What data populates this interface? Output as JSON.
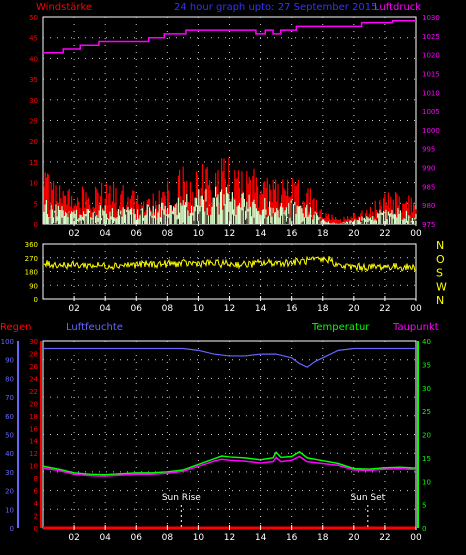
{
  "header": {
    "left_title": "Windstärke",
    "center_title": "24 hour graph upto:  27 September 2015",
    "right_title": "Luftdruck"
  },
  "colors": {
    "wind_gust": "#ff0000",
    "wind_avg": "#ccffcc",
    "wind_dark": "#00ff00",
    "pressure": "#ff00ff",
    "direction": "#ffff00",
    "rain": "#ff0000",
    "humidity": "#6666ff",
    "temperature": "#00ff00",
    "dewpoint": "#ff00ff",
    "axis": "#ffffff",
    "grid": "#cccccc",
    "title_center": "#3333ff"
  },
  "chart_data": [
    {
      "id": "wind_pressure",
      "type": "area",
      "x_ticks": [
        "02",
        "04",
        "06",
        "08",
        "10",
        "12",
        "14",
        "16",
        "18",
        "20",
        "22",
        "00"
      ],
      "y_left_ticks": [
        "0",
        "5",
        "10",
        "15",
        "20",
        "25",
        "30",
        "35",
        "40",
        "45",
        "50"
      ],
      "y_right_ticks": [
        "975",
        "980",
        "985",
        "990",
        "995",
        "1000",
        "1005",
        "1010",
        "1015",
        "1020",
        "1025",
        "1030"
      ],
      "ylim_left": [
        0,
        50
      ],
      "ylim_right": [
        975,
        1030
      ],
      "grid": true,
      "series": [
        {
          "name": "Windstärke",
          "axis": "left",
          "x": [
            0,
            1,
            2,
            3,
            4,
            5,
            6,
            7,
            8,
            9,
            10,
            11,
            12,
            13,
            14,
            15,
            16,
            17,
            18,
            19,
            20,
            21,
            22,
            23,
            24
          ],
          "values": [
            10,
            8,
            7,
            7,
            8,
            9,
            6,
            7,
            8,
            11,
            12,
            13,
            13,
            12,
            10,
            10,
            9,
            8,
            3,
            1,
            2,
            4,
            6,
            6,
            5
          ]
        },
        {
          "name": "",
          "axis": "left",
          "x": [
            0,
            1,
            2,
            3,
            4,
            5,
            6,
            7,
            8,
            9,
            10,
            11,
            12,
            13,
            14,
            15,
            16,
            17,
            18,
            19,
            20,
            21,
            22,
            23,
            24
          ],
          "values": [
            5,
            4,
            3,
            3,
            4,
            4,
            3,
            4,
            4,
            6,
            7,
            7,
            7,
            6,
            5,
            5,
            5,
            4,
            1,
            0,
            1,
            2,
            3,
            3,
            2
          ]
        },
        {
          "name": "Luftdruck",
          "axis": "right",
          "x": [
            0,
            1.3,
            1.3,
            2.4,
            2.4,
            3.6,
            3.6,
            6.8,
            6.8,
            7.8,
            7.8,
            9.2,
            9.2,
            13.7,
            13.7,
            14.3,
            14.3,
            14.8,
            14.8,
            15.3,
            15.3,
            16.3,
            16.3,
            20.5,
            20.5,
            22.5,
            22.5,
            24
          ],
          "values": [
            1020.5,
            1020.5,
            1021.5,
            1021.5,
            1022.5,
            1022.5,
            1023.5,
            1023.5,
            1024.5,
            1024.5,
            1025.5,
            1025.5,
            1026.5,
            1026.5,
            1025.5,
            1025.5,
            1026.5,
            1026.5,
            1025.5,
            1025.5,
            1026.5,
            1026.5,
            1027.5,
            1027.5,
            1028.5,
            1028.5,
            1029.0,
            1029.0
          ]
        }
      ]
    },
    {
      "id": "wind_direction",
      "type": "line",
      "x_ticks": [
        "02",
        "04",
        "06",
        "08",
        "10",
        "12",
        "14",
        "16",
        "18",
        "20",
        "22",
        "00"
      ],
      "y_ticks": [
        "0",
        "90",
        "180",
        "270",
        "360"
      ],
      "y_right_labels": [
        "N",
        "W",
        "S",
        "O",
        "N"
      ],
      "ylim": [
        0,
        360
      ],
      "grid": true,
      "series": [
        {
          "name": "",
          "x": [
            0,
            1,
            2,
            3,
            4,
            5,
            6,
            7,
            8,
            9,
            10,
            11,
            12,
            13,
            14,
            15,
            16,
            17,
            18,
            18.5,
            19,
            20,
            21,
            22,
            23,
            24
          ],
          "values": [
            230,
            225,
            222,
            220,
            218,
            222,
            225,
            228,
            230,
            232,
            235,
            232,
            230,
            225,
            235,
            238,
            240,
            250,
            255,
            260,
            215,
            210,
            208,
            212,
            210,
            205
          ]
        }
      ]
    },
    {
      "id": "humidity_temperature",
      "type": "line",
      "left_labels": {
        "rain": "Regen",
        "humidity": "Luftfeuchte"
      },
      "right_labels": {
        "temperature": "Temperatur",
        "dewpoint": "Taupunkt"
      },
      "x_ticks": [
        "02",
        "04",
        "06",
        "08",
        "10",
        "12",
        "14",
        "16",
        "18",
        "20",
        "22",
        "00"
      ],
      "y_left_ticks": [
        "0",
        "10",
        "20",
        "30",
        "40",
        "50",
        "60",
        "70",
        "80",
        "90",
        "100"
      ],
      "y_rain_ticks": [
        "0",
        "2",
        "4",
        "6",
        "8",
        "10",
        "12",
        "14",
        "16",
        "18",
        "20",
        "22",
        "24",
        "26",
        "28",
        "30"
      ],
      "y_right_ticks": [
        "0",
        "5",
        "10",
        "15",
        "20",
        "25",
        "30",
        "35",
        "40"
      ],
      "ylim_left": [
        0,
        100
      ],
      "ylim_rain": [
        0,
        30
      ],
      "ylim_right": [
        0,
        40
      ],
      "grid": true,
      "annotations": [
        {
          "label": "Sun Rise",
          "x": 8.9
        },
        {
          "label": "Sun Set",
          "x": 20.9
        }
      ],
      "series": [
        {
          "name": "Regen",
          "axis": "rain",
          "x": [
            0,
            24
          ],
          "values": [
            0,
            0
          ]
        },
        {
          "name": "Luftfeuchte",
          "axis": "left",
          "x": [
            0,
            3,
            6,
            9,
            10,
            11,
            12,
            13,
            14,
            15,
            15.5,
            16,
            16.5,
            17,
            17.5,
            18,
            19,
            20,
            22,
            24
          ],
          "values": [
            96,
            96,
            96,
            96,
            95,
            93,
            92,
            92,
            93,
            93,
            92,
            91,
            88,
            86,
            89,
            91,
            95,
            96,
            96,
            96
          ]
        },
        {
          "name": "Temperatur",
          "axis": "right",
          "x": [
            0,
            1,
            2,
            3,
            4,
            5,
            6,
            7,
            8,
            9,
            10,
            11,
            11.5,
            12,
            13,
            14,
            14.8,
            15,
            15.3,
            16,
            16.5,
            17,
            18,
            19,
            20,
            21,
            22,
            23,
            24
          ],
          "values": [
            13.2,
            12.6,
            11.8,
            11.5,
            11.4,
            11.6,
            11.8,
            11.8,
            12.0,
            12.4,
            13.6,
            14.8,
            15.4,
            15.2,
            15.0,
            14.6,
            15.0,
            16.2,
            15.1,
            15.3,
            16.3,
            15.0,
            14.4,
            13.8,
            12.7,
            12.6,
            12.9,
            13.0,
            12.8
          ]
        },
        {
          "name": "Taupunkt",
          "axis": "right",
          "x": [
            0,
            1,
            2,
            3,
            4,
            5,
            6,
            7,
            8,
            9,
            10,
            11,
            11.5,
            12,
            13,
            14,
            14.8,
            15,
            15.3,
            16,
            16.5,
            17,
            18,
            19,
            20,
            21,
            22,
            23,
            24
          ],
          "values": [
            12.8,
            12.3,
            11.5,
            11.2,
            11.1,
            11.3,
            11.5,
            11.5,
            11.7,
            12.1,
            13.2,
            14.3,
            14.7,
            14.5,
            14.3,
            13.9,
            14.2,
            15.1,
            14.2,
            14.5,
            15.3,
            14.2,
            13.8,
            13.4,
            12.4,
            12.3,
            12.6,
            12.7,
            12.5
          ]
        }
      ]
    }
  ]
}
